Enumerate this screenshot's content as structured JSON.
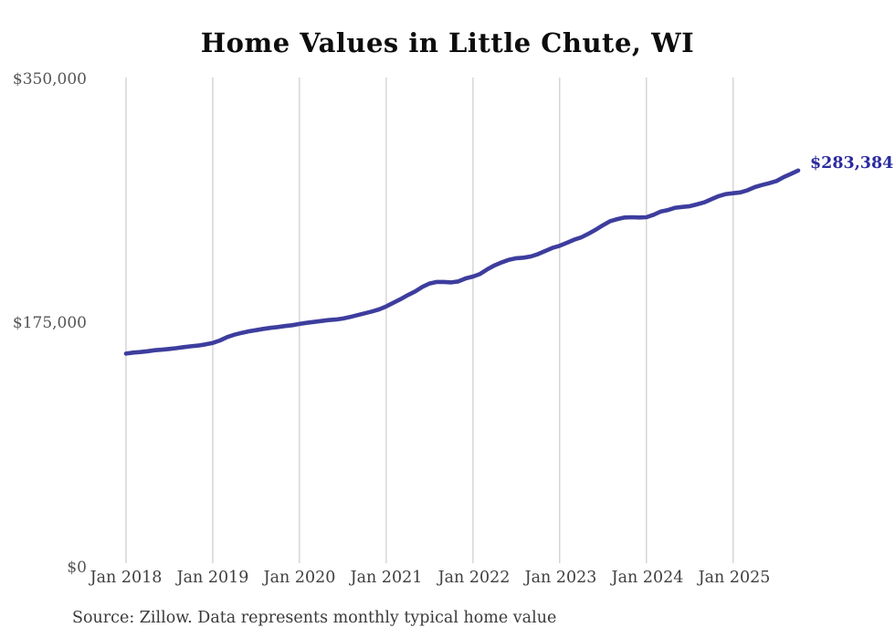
{
  "title": "Home Values in Little Chute, WI",
  "end_label": "$283,384",
  "source_note": "Source: Zillow. Data represents monthly typical home value",
  "colors": {
    "line": "#3d3d9e",
    "end_label_text": "#2b2b9e",
    "grid": "#cccccc",
    "y_axis_text": "#555555",
    "x_axis_text": "#3f3f3f",
    "title_text": "#0d0d0d",
    "background": "#ffffff"
  },
  "chart_data": {
    "type": "line",
    "title": "Home Values in Little Chute, WI",
    "xlabel": "",
    "ylabel": "",
    "frequency": "monthly",
    "x_start": "Jan 2018",
    "x_end": "Oct 2025",
    "x_tick_labels": [
      "Jan 2018",
      "Jan 2019",
      "Jan 2020",
      "Jan 2021",
      "Jan 2022",
      "Jan 2023",
      "Jan 2024",
      "Jan 2025"
    ],
    "y_tick_labels": [
      "$0",
      "$175,000",
      "$350,000"
    ],
    "y_tick_values": [
      0,
      175000,
      350000
    ],
    "ylim": [
      0,
      350000
    ],
    "grid": "vertical-only",
    "legend": "none",
    "end_value": 283384,
    "series": [
      {
        "name": "Typical home value",
        "values": [
          152200,
          152900,
          153300,
          153900,
          154600,
          155000,
          155500,
          156100,
          156800,
          157400,
          157900,
          158800,
          159800,
          161600,
          164000,
          165700,
          167000,
          168100,
          169000,
          169900,
          170600,
          171200,
          171900,
          172500,
          173400,
          174200,
          174900,
          175500,
          176200,
          176600,
          177300,
          178400,
          179700,
          181000,
          182300,
          183800,
          186000,
          188600,
          191200,
          194100,
          196700,
          200000,
          202400,
          203500,
          203500,
          203200,
          203900,
          206100,
          207400,
          209300,
          212600,
          215400,
          217600,
          219400,
          220500,
          220900,
          221800,
          223500,
          225700,
          227900,
          229400,
          231600,
          233800,
          235500,
          238100,
          241000,
          244200,
          247100,
          248600,
          249700,
          249900,
          249700,
          249900,
          251700,
          254000,
          255100,
          256700,
          257300,
          257800,
          259100,
          260600,
          262800,
          265000,
          266500,
          267100,
          267700,
          269300,
          271500,
          273000,
          274300,
          275900,
          278700,
          281000,
          283384
        ]
      }
    ]
  }
}
